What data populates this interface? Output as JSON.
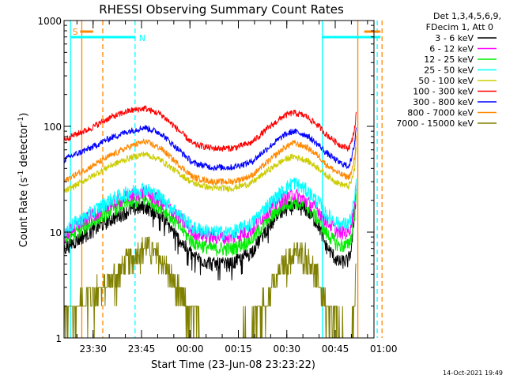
{
  "chart_data": {
    "type": "line",
    "title": "RHESSI Observing Summary Count Rates",
    "xlabel": "Start Time (23-Jun-08 23:23:22)",
    "ylabel": "Count Rate (s^-1 detector^-1)",
    "ylabel_parts": {
      "main": "Count Rate (s",
      "sup1": "-1",
      "mid": " detector",
      "sup2": "-1",
      "end": ")"
    },
    "ylog": true,
    "ylim": [
      1,
      1000
    ],
    "xlim_min": [
      -2,
      94
    ],
    "yticks": [
      {
        "v": 1,
        "label": "1"
      },
      {
        "v": 10,
        "label": "10"
      },
      {
        "v": 100,
        "label": "100"
      },
      {
        "v": 1000,
        "label": "1000"
      }
    ],
    "xticks": [
      {
        "m": 7,
        "label": "23:30"
      },
      {
        "m": 22,
        "label": "23:45"
      },
      {
        "m": 37,
        "label": "00:00"
      },
      {
        "m": 52,
        "label": "00:15"
      },
      {
        "m": 67,
        "label": "00:30"
      },
      {
        "m": 82,
        "label": "00:45"
      },
      {
        "m": 97,
        "label": "01:00"
      }
    ],
    "legend_header": [
      "Det 1,3,4,5,6,9,",
      "FDecim 1, Att 0"
    ],
    "footer_date": "14-Oct-2021 19:49",
    "series": [
      {
        "name": "3 - 6 keV",
        "color": "#000000"
      },
      {
        "name": "6 - 12 keV",
        "color": "#ff00ff"
      },
      {
        "name": "12 - 25 keV",
        "color": "#00ee00"
      },
      {
        "name": "25 - 50 keV",
        "color": "#00ffff"
      },
      {
        "name": "50 - 100 keV",
        "color": "#cccc00"
      },
      {
        "name": "100 - 300 keV",
        "color": "#ff0000"
      },
      {
        "name": "300 - 800 keV",
        "color": "#0000ff"
      },
      {
        "name": "800 - 7000 keV",
        "color": "#ff8800"
      },
      {
        "name": "7000 - 15000 keV",
        "color": "#808000"
      }
    ],
    "profile": {
      "t": [
        -2,
        0,
        6,
        12,
        18,
        23,
        28,
        33,
        38,
        44,
        50,
        56,
        61,
        66,
        69,
        73,
        77,
        79,
        83,
        86,
        87,
        88,
        88.5
      ],
      "series_values": [
        [
          7.0,
          7.7,
          10.0,
          13.0,
          16.0,
          17.5,
          14.5,
          9.0,
          6.0,
          5.0,
          5.0,
          6.5,
          11.0,
          16.0,
          17.5,
          16.5,
          11.5,
          7.5,
          5.2,
          5.4,
          7.0,
          15.0,
          25.0
        ],
        [
          9.0,
          10.5,
          14.0,
          18.0,
          22.0,
          24.0,
          19.5,
          14.5,
          10.0,
          9.0,
          9.0,
          10.5,
          16.0,
          21.0,
          23.0,
          20.0,
          16.0,
          13.0,
          10.0,
          10.0,
          12.0,
          18.0,
          28.0
        ],
        [
          8.0,
          9.2,
          12.0,
          16.0,
          19.0,
          20.5,
          17.5,
          12.0,
          8.0,
          7.0,
          7.0,
          8.5,
          13.0,
          18.0,
          19.5,
          17.5,
          13.0,
          10.0,
          7.5,
          7.5,
          9.0,
          15.0,
          22.0
        ],
        [
          10.0,
          11.5,
          15.0,
          20.0,
          24.0,
          26.0,
          21.5,
          15.5,
          11.0,
          10.0,
          10.0,
          12.0,
          18.0,
          25.0,
          30.0,
          25.0,
          19.0,
          15.0,
          12.0,
          12.0,
          14.0,
          20.0,
          30.0
        ],
        [
          24.0,
          26.0,
          33.0,
          42.0,
          50.0,
          55.0,
          48.0,
          37.0,
          29.0,
          26.0,
          26.0,
          29.0,
          38.0,
          48.0,
          52.0,
          48.0,
          40.0,
          35.0,
          29.0,
          27.0,
          30.0,
          40.0,
          65.0
        ],
        [
          75.0,
          80.0,
          95.0,
          120.0,
          140.0,
          148.0,
          130.0,
          95.0,
          68.0,
          62.0,
          62.0,
          70.0,
          95.0,
          125.0,
          135.0,
          125.0,
          100.0,
          85.0,
          68.0,
          62.0,
          70.0,
          95.0,
          130.0
        ],
        [
          48.0,
          52.0,
          62.0,
          77.0,
          90.0,
          98.0,
          86.0,
          62.0,
          45.0,
          41.0,
          41.0,
          46.0,
          62.0,
          82.0,
          90.0,
          83.0,
          66.0,
          57.0,
          46.0,
          42.0,
          48.0,
          70.0,
          100.0
        ],
        [
          30.0,
          33.0,
          41.0,
          52.0,
          64.0,
          72.0,
          62.0,
          45.0,
          33.0,
          30.0,
          30.0,
          34.0,
          46.0,
          62.0,
          70.0,
          64.0,
          52.0,
          44.0,
          36.0,
          33.0,
          36.0,
          50.0,
          80.0
        ],
        [
          1.5,
          1.9,
          2.5,
          3.5,
          5.5,
          7.5,
          6.0,
          3.0,
          1.5,
          1.1,
          1.1,
          1.3,
          2.5,
          5.0,
          6.5,
          6.2,
          3.5,
          2.0,
          1.3,
          1.1,
          1.2,
          2.0,
          5.0
        ]
      ]
    },
    "vertical_markers": [
      {
        "t": 0,
        "color": "#00ffff",
        "style": "solid"
      },
      {
        "t": 3.5,
        "color": "#ff8800",
        "style": "solid"
      },
      {
        "t": 10,
        "color": "#ff8800",
        "style": "dashed"
      },
      {
        "t": 20,
        "color": "#00ffff",
        "style": "dashed"
      },
      {
        "t": 78,
        "color": "#00ffff",
        "style": "solid"
      },
      {
        "t": 89,
        "color": "#ff8800",
        "style": "solid"
      },
      {
        "t": 95,
        "color": "#00ffff",
        "style": "dashed"
      },
      {
        "t": 96.5,
        "color": "#ff8800",
        "style": "dashed"
      }
    ],
    "flag_bars": [
      {
        "t0": 0,
        "t1": 20,
        "color": "#00ffff",
        "level": 1
      },
      {
        "t0": 78,
        "t1": 96,
        "color": "#00ffff",
        "level": 1
      },
      {
        "t0": 3,
        "t1": 7,
        "color": "#ff8800",
        "level": 0
      },
      {
        "t0": 91,
        "t1": 96,
        "color": "#ff8800",
        "level": 0
      }
    ],
    "flag_labels": [
      {
        "text": "S",
        "t": 0.6,
        "color": "#ff8800"
      },
      {
        "text": "N",
        "t": 21.2,
        "color": "#00ffff"
      }
    ]
  }
}
